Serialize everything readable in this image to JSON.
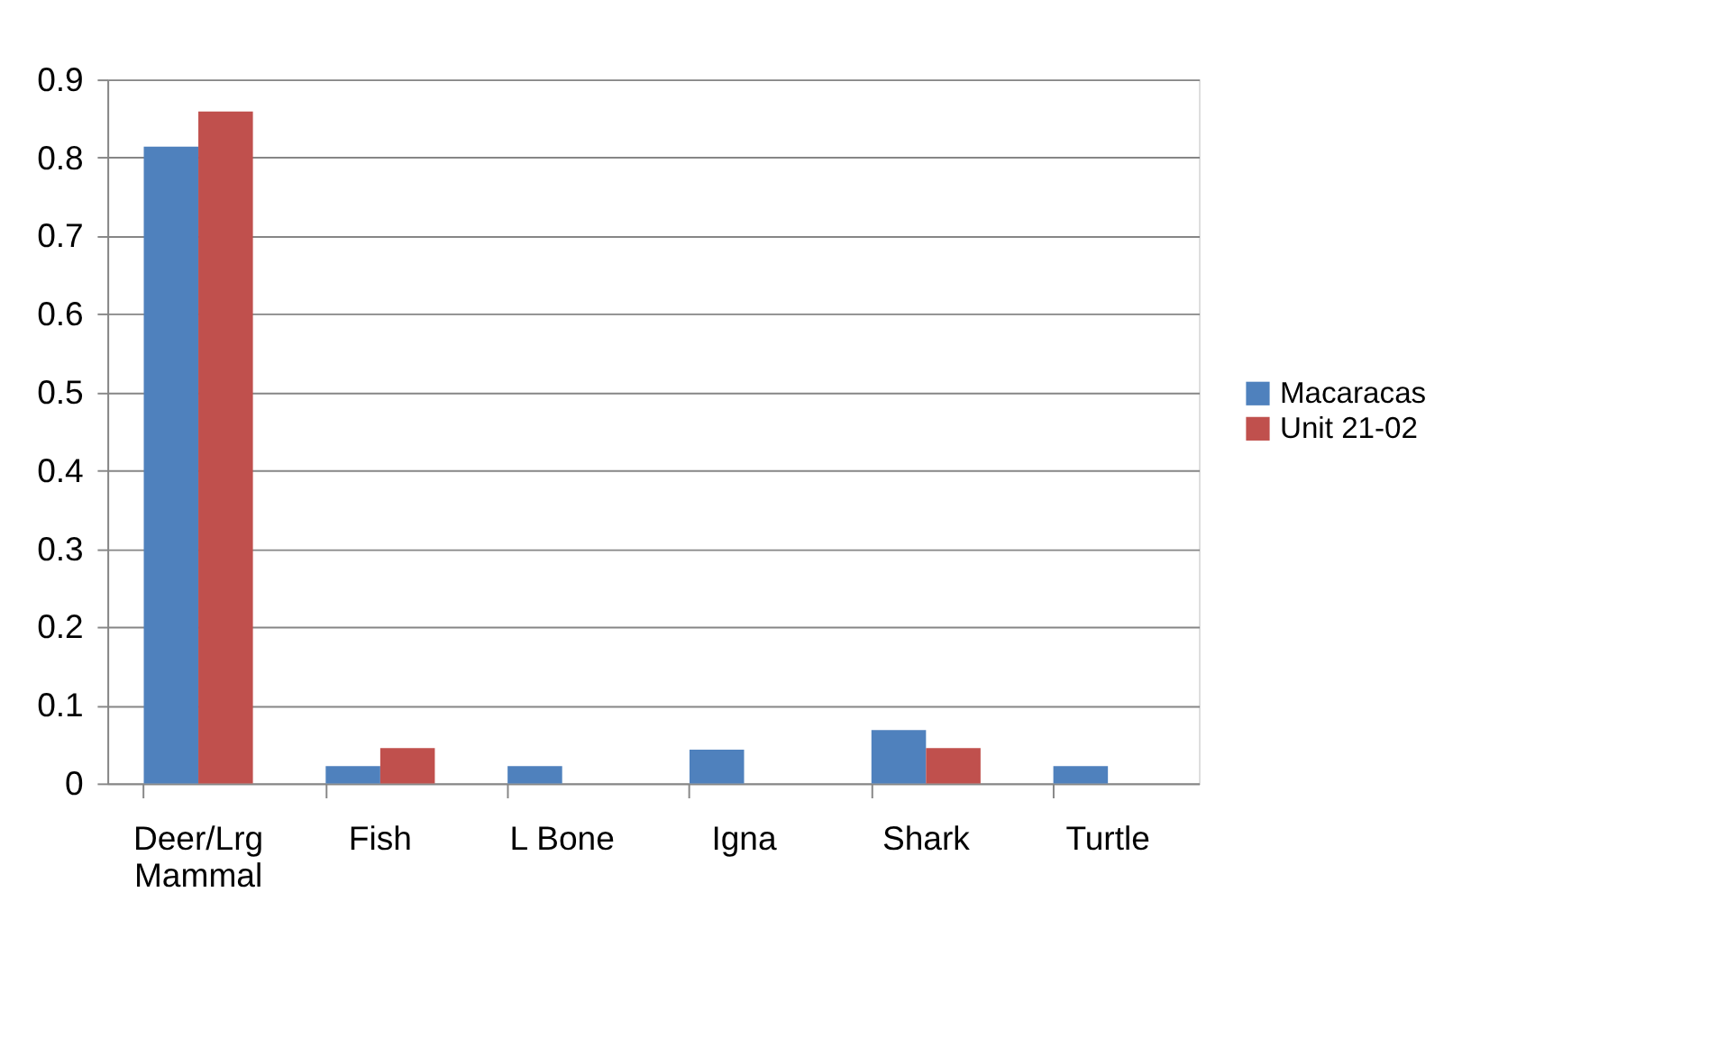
{
  "chart_data": {
    "type": "bar",
    "categories": [
      "Deer/Lrg Mammal",
      "Fish",
      "L Bone",
      "Igna",
      "Shark",
      "Turtle"
    ],
    "series": [
      {
        "name": "Macaracas",
        "color": "#4f81bd",
        "values": [
          0.814,
          0.022,
          0.022,
          0.043,
          0.068,
          0.022
        ]
      },
      {
        "name": "Unit 21-02",
        "color": "#c0504d",
        "values": [
          0.859,
          0.045,
          0,
          0,
          0.045,
          0
        ]
      }
    ],
    "ylim": [
      0,
      0.9
    ],
    "yticks": [
      0,
      0.1,
      0.2,
      0.3,
      0.4,
      0.5,
      0.6,
      0.7,
      0.8,
      0.9
    ],
    "grid": "y",
    "legend": "right"
  }
}
